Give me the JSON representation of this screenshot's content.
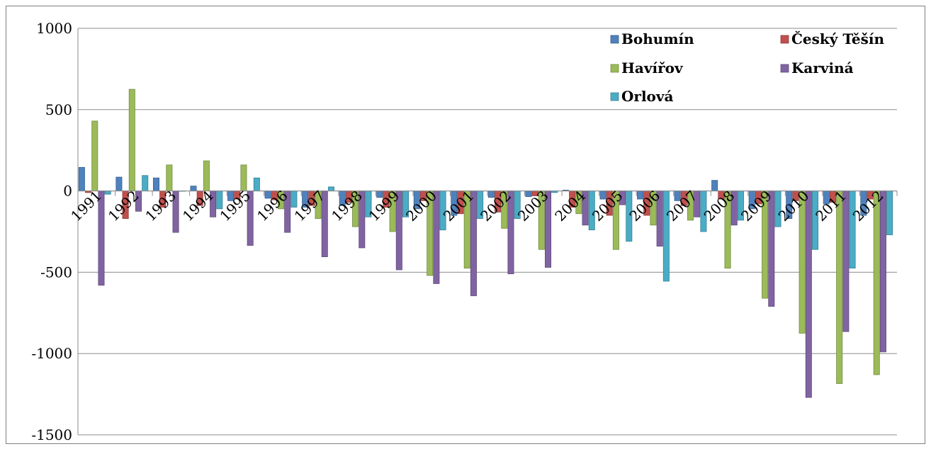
{
  "chart_data": {
    "type": "bar",
    "title": "",
    "xlabel": "",
    "ylabel": "",
    "ylim": [
      -1500,
      1000
    ],
    "yticks": [
      1000,
      500,
      0,
      -500,
      -1000,
      -1500
    ],
    "grid": true,
    "legend_position": "top-right",
    "categories": [
      "1991",
      "1992",
      "1993",
      "1994",
      "1995",
      "1996",
      "1997",
      "1998",
      "1999",
      "2000",
      "2001",
      "2002",
      "2003",
      "2004",
      "2005",
      "2006",
      "2007",
      "2008",
      "2009",
      "2010",
      "2011",
      "2012"
    ],
    "series": [
      {
        "name": "Bohumín",
        "color": "#4F81BD",
        "values": [
          145,
          85,
          80,
          30,
          -60,
          -45,
          -100,
          -90,
          -40,
          -110,
          -150,
          -40,
          -35,
          5,
          -50,
          -50,
          -60,
          65,
          -110,
          -170,
          -80,
          -150
        ]
      },
      {
        "name": "Český Těšín",
        "color": "#C0504D",
        "values": [
          -10,
          -170,
          -100,
          -90,
          -50,
          -55,
          -90,
          -70,
          -100,
          -60,
          -140,
          -130,
          -30,
          -100,
          -150,
          -150,
          -90,
          -50,
          -80,
          -60,
          -70,
          -50
        ]
      },
      {
        "name": "Havířov",
        "color": "#9BBB59",
        "values": [
          430,
          625,
          160,
          185,
          160,
          -110,
          -170,
          -220,
          -250,
          -520,
          -475,
          -230,
          -360,
          -140,
          -360,
          -210,
          -180,
          -475,
          -660,
          -875,
          -1185,
          -1130
        ]
      },
      {
        "name": "Karviná",
        "color": "#8064A2",
        "values": [
          -580,
          -125,
          -255,
          -160,
          -335,
          -255,
          -405,
          -350,
          -485,
          -570,
          -645,
          -510,
          -470,
          -210,
          -85,
          -340,
          -160,
          -210,
          -710,
          -1270,
          -865,
          -990
        ]
      },
      {
        "name": "Orlová",
        "color": "#4BACC6",
        "values": [
          -20,
          95,
          0,
          -110,
          80,
          -100,
          25,
          -160,
          -160,
          -240,
          -170,
          -170,
          -10,
          -240,
          -310,
          -555,
          -250,
          -180,
          -220,
          -360,
          -475,
          -270
        ]
      }
    ]
  }
}
